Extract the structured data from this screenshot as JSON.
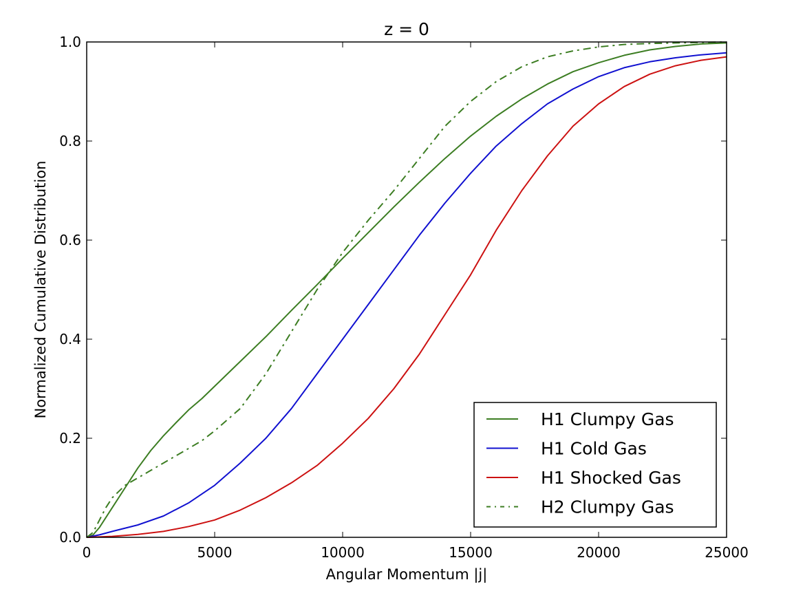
{
  "chart_data": {
    "type": "line",
    "title": "z = 0",
    "xlabel": "Angular Momentum |j|",
    "ylabel": "Normalized Cumulative Distribution",
    "xlim": [
      0,
      25000
    ],
    "ylim": [
      0,
      1.0
    ],
    "xticks": [
      0,
      5000,
      10000,
      15000,
      20000,
      25000
    ],
    "yticks": [
      0.0,
      0.2,
      0.4,
      0.6,
      0.8,
      1.0
    ],
    "xtick_labels": [
      "0",
      "5000",
      "10000",
      "15000",
      "20000",
      "25000"
    ],
    "ytick_labels": [
      "0.0",
      "0.2",
      "0.4",
      "0.6",
      "0.8",
      "1.0"
    ],
    "grid": false,
    "legend_position": "lower-right",
    "series": [
      {
        "name": "H1 Clumpy Gas",
        "color": "#3c7d22",
        "style": "solid",
        "x": [
          0,
          250,
          500,
          750,
          1000,
          1500,
          2000,
          2500,
          3000,
          3500,
          4000,
          4500,
          5000,
          6000,
          7000,
          8000,
          9000,
          10000,
          11000,
          12000,
          13000,
          14000,
          15000,
          16000,
          17000,
          18000,
          19000,
          20000,
          21000,
          22000,
          23000,
          24000,
          25000
        ],
        "y": [
          0.0,
          0.005,
          0.02,
          0.04,
          0.06,
          0.1,
          0.14,
          0.175,
          0.205,
          0.232,
          0.258,
          0.28,
          0.305,
          0.355,
          0.405,
          0.458,
          0.51,
          0.563,
          0.615,
          0.667,
          0.717,
          0.765,
          0.81,
          0.85,
          0.885,
          0.915,
          0.94,
          0.958,
          0.973,
          0.984,
          0.991,
          0.996,
          0.998
        ]
      },
      {
        "name": "H1 Cold Gas",
        "color": "#1010d0",
        "style": "solid",
        "x": [
          0,
          500,
          1000,
          2000,
          3000,
          4000,
          5000,
          6000,
          7000,
          8000,
          9000,
          10000,
          11000,
          12000,
          13000,
          14000,
          15000,
          16000,
          17000,
          18000,
          19000,
          20000,
          21000,
          22000,
          23000,
          24000,
          25000
        ],
        "y": [
          0.0,
          0.005,
          0.012,
          0.025,
          0.043,
          0.07,
          0.105,
          0.15,
          0.2,
          0.26,
          0.33,
          0.4,
          0.47,
          0.54,
          0.61,
          0.675,
          0.735,
          0.79,
          0.835,
          0.875,
          0.905,
          0.93,
          0.948,
          0.96,
          0.968,
          0.974,
          0.978
        ]
      },
      {
        "name": "H1 Shocked Gas",
        "color": "#cc1111",
        "style": "solid",
        "x": [
          0,
          1000,
          2000,
          3000,
          4000,
          5000,
          6000,
          7000,
          8000,
          9000,
          10000,
          11000,
          12000,
          13000,
          14000,
          15000,
          16000,
          17000,
          18000,
          19000,
          20000,
          21000,
          22000,
          23000,
          24000,
          25000
        ],
        "y": [
          0.0,
          0.002,
          0.006,
          0.012,
          0.022,
          0.035,
          0.055,
          0.08,
          0.11,
          0.145,
          0.19,
          0.24,
          0.3,
          0.37,
          0.45,
          0.53,
          0.62,
          0.7,
          0.77,
          0.83,
          0.875,
          0.91,
          0.935,
          0.952,
          0.963,
          0.97
        ]
      },
      {
        "name": "H2 Clumpy Gas",
        "color": "#3c7d22",
        "style": "dashdot",
        "x": [
          0,
          250,
          500,
          750,
          1000,
          1500,
          2000,
          2500,
          3000,
          3500,
          4000,
          4500,
          5000,
          6000,
          7000,
          8000,
          9000,
          10000,
          11000,
          12000,
          13000,
          14000,
          15000,
          16000,
          17000,
          18000,
          19000,
          20000,
          21000,
          22000,
          23000,
          24000,
          25000
        ],
        "y": [
          0.0,
          0.01,
          0.035,
          0.06,
          0.08,
          0.105,
          0.12,
          0.135,
          0.15,
          0.165,
          0.18,
          0.195,
          0.215,
          0.26,
          0.33,
          0.415,
          0.5,
          0.575,
          0.64,
          0.7,
          0.765,
          0.83,
          0.88,
          0.92,
          0.95,
          0.97,
          0.982,
          0.99,
          0.995,
          0.997,
          0.998,
          0.999,
          1.0
        ]
      }
    ]
  }
}
